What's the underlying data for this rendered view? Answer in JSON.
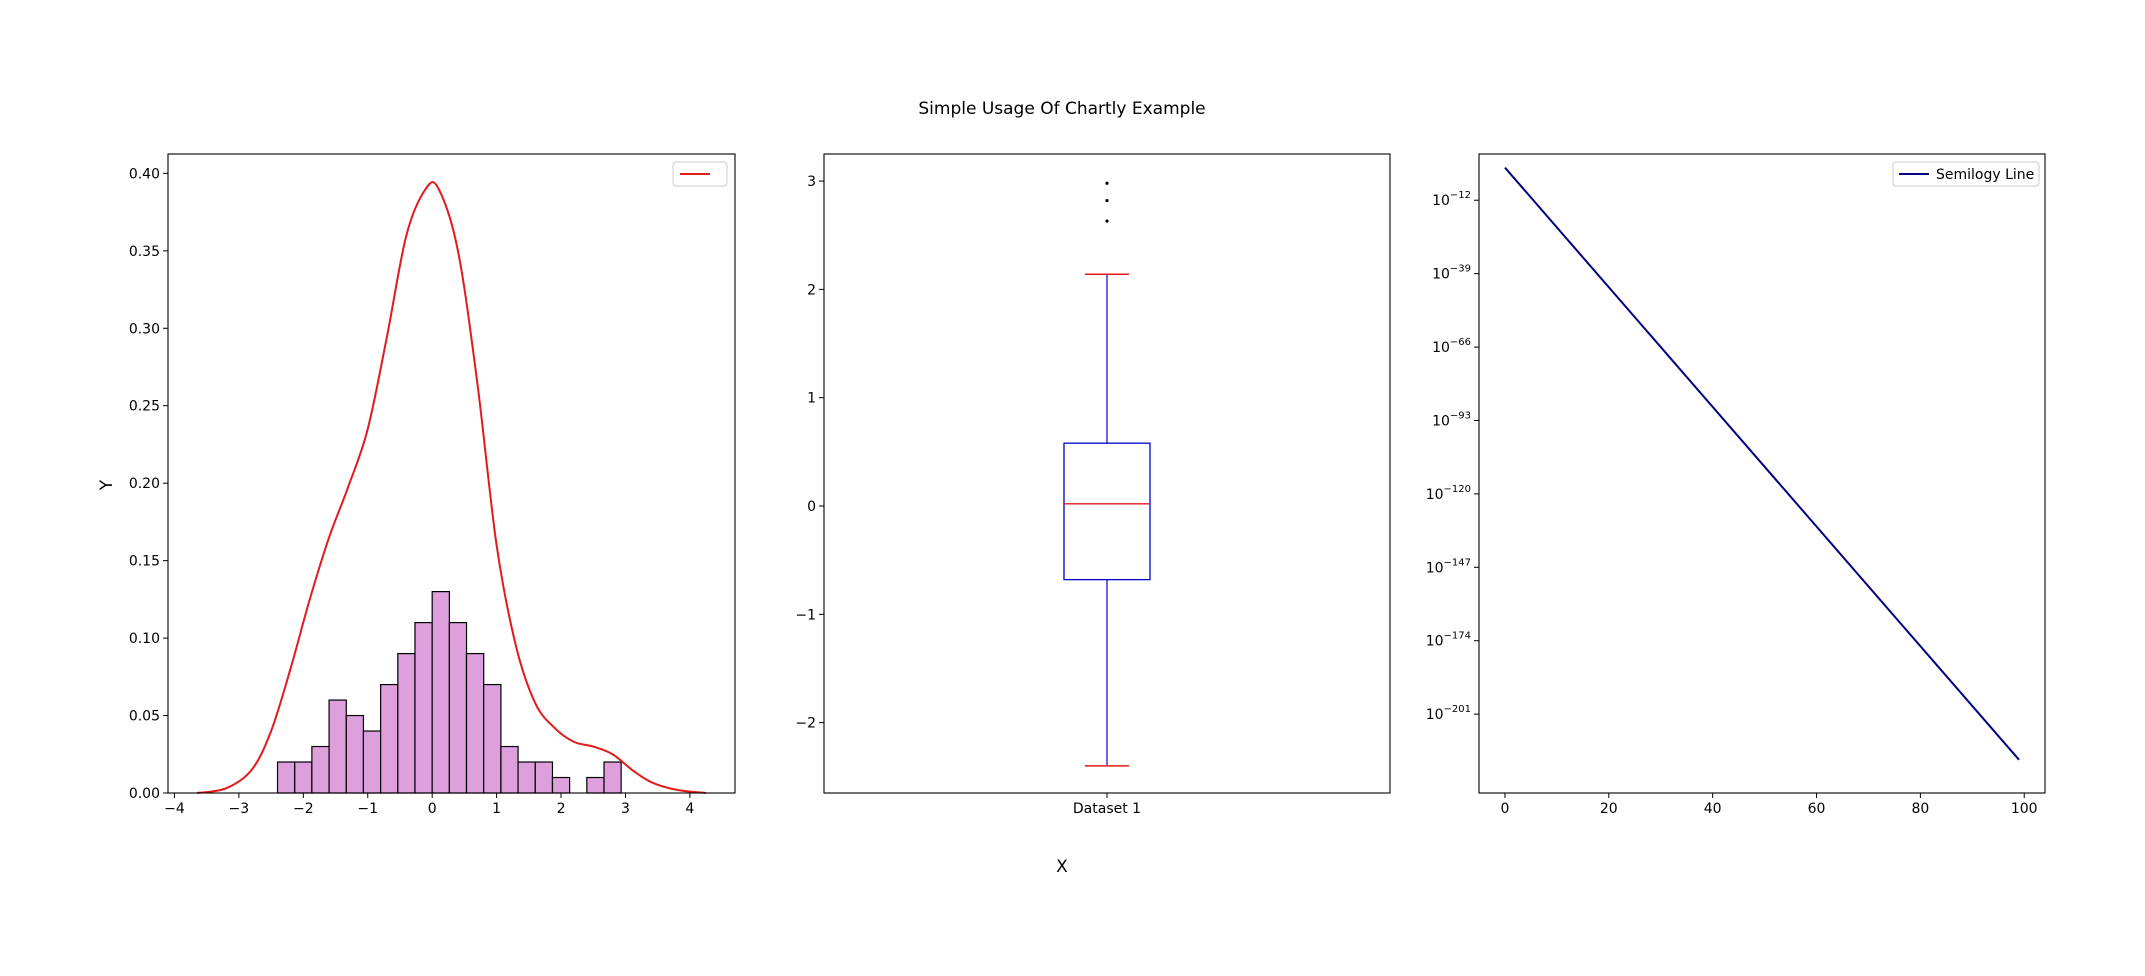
{
  "figure": {
    "title": "Simple Usage Of Chartly Example",
    "xlabel": "X",
    "ylabel": "Y"
  },
  "chart_data": [
    {
      "type": "bar",
      "subtype": "histogram-with-density",
      "xlim": [
        -4.1,
        4.7
      ],
      "ylim": [
        0,
        0.4125
      ],
      "xticks": [
        "−4",
        "−3",
        "−2",
        "−1",
        "0",
        "1",
        "2",
        "3",
        "4"
      ],
      "yticks": [
        "0.00",
        "0.05",
        "0.10",
        "0.15",
        "0.20",
        "0.25",
        "0.30",
        "0.35",
        "0.40"
      ],
      "bar_color": "#dda0dd",
      "line_color": "#e31a1c",
      "legend": {
        "placement": "top-right",
        "entries": [
          ""
        ]
      },
      "histogram": {
        "bin_edges": [
          -2.4,
          -2.133,
          -1.867,
          -1.6,
          -1.333,
          -1.067,
          -0.8,
          -0.533,
          -0.267,
          0.0,
          0.267,
          0.533,
          0.8,
          1.067,
          1.333,
          1.6,
          1.867,
          2.133,
          2.4,
          2.667,
          2.933
        ],
        "values": [
          0.02,
          0.02,
          0.03,
          0.06,
          0.05,
          0.04,
          0.07,
          0.09,
          0.11,
          0.13,
          0.11,
          0.09,
          0.07,
          0.03,
          0.02,
          0.02,
          0.01,
          0.0,
          0.01,
          0.02
        ]
      },
      "density": {
        "x": [
          -3.65,
          -3.2,
          -2.8,
          -2.5,
          -2.2,
          -1.9,
          -1.6,
          -1.3,
          -1.0,
          -0.7,
          -0.4,
          -0.1,
          0.1,
          0.4,
          0.7,
          1.0,
          1.3,
          1.6,
          1.9,
          2.2,
          2.5,
          2.8,
          3.1,
          3.4,
          3.8,
          4.25
        ],
        "y": [
          0.0,
          0.003,
          0.015,
          0.04,
          0.08,
          0.125,
          0.165,
          0.198,
          0.235,
          0.295,
          0.36,
          0.39,
          0.39,
          0.35,
          0.265,
          0.16,
          0.095,
          0.058,
          0.042,
          0.033,
          0.03,
          0.025,
          0.015,
          0.007,
          0.002,
          0.0
        ]
      }
    },
    {
      "type": "box",
      "categories": [
        "Dataset 1"
      ],
      "ylim": [
        -2.65,
        3.25
      ],
      "yticks": [
        "−2",
        "−1",
        "0",
        "1",
        "2",
        "3"
      ],
      "box_color": "#0000cc",
      "median_color": "#e31a1c",
      "whisker_cap_color": "#e31a1c",
      "whisker_low": -2.4,
      "q1": -0.68,
      "median": 0.02,
      "q3": 0.58,
      "whisker_high": 2.14,
      "outliers": [
        2.63,
        2.82,
        2.98
      ]
    },
    {
      "type": "line",
      "y_scale": "log",
      "xlim": [
        -5,
        104
      ],
      "y_log10_lim": [
        -230,
        5
      ],
      "xticks": [
        "0",
        "20",
        "40",
        "60",
        "80",
        "100"
      ],
      "yticks": [
        "10^-12",
        "10^-39",
        "10^-66",
        "10^-93",
        "10^-120",
        "10^-147",
        "10^-174",
        "10^-201"
      ],
      "legend": {
        "placement": "top-right"
      },
      "series": [
        {
          "name": "Semilogy Line",
          "color": "#000080",
          "x": [
            0,
            99
          ],
          "y": [
            "1e0",
            "1e-217.8"
          ]
        }
      ]
    }
  ]
}
